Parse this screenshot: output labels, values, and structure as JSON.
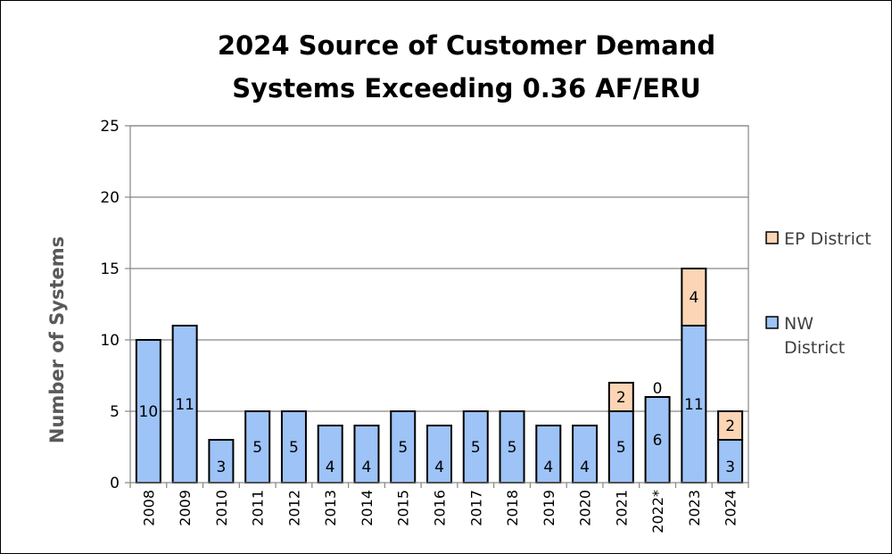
{
  "chart_data": {
    "type": "bar",
    "stacked": true,
    "title": "2024 Source of Customer Demand",
    "subtitle": "Systems Exceeding 0.36 AF/ERU",
    "xlabel": "",
    "ylabel": "Number of Systems",
    "ylim": [
      0,
      25
    ],
    "yticks": [
      0,
      5,
      10,
      15,
      20,
      25
    ],
    "grid": true,
    "legend_position": "right",
    "categories": [
      "2008",
      "2009",
      "2010",
      "2011",
      "2012",
      "2013",
      "2014",
      "2015",
      "2016",
      "2017",
      "2018",
      "2019",
      "2020",
      "2021",
      "2022*",
      "2023",
      "2024"
    ],
    "series": [
      {
        "name": "NW District",
        "legend_lines": [
          "NW",
          "District"
        ],
        "color": "#9DC3F7",
        "values": [
          10,
          11,
          3,
          5,
          5,
          4,
          4,
          5,
          4,
          5,
          5,
          4,
          4,
          5,
          6,
          11,
          3
        ]
      },
      {
        "name": "EP District",
        "legend_lines": [
          "EP District"
        ],
        "color": "#FBD5B5",
        "values": [
          0,
          0,
          0,
          0,
          0,
          0,
          0,
          0,
          0,
          0,
          0,
          0,
          0,
          2,
          0,
          4,
          2
        ],
        "shown_labels": [
          null,
          null,
          null,
          null,
          null,
          null,
          null,
          null,
          null,
          null,
          null,
          null,
          null,
          "2",
          "0",
          "4",
          "2"
        ]
      }
    ]
  }
}
